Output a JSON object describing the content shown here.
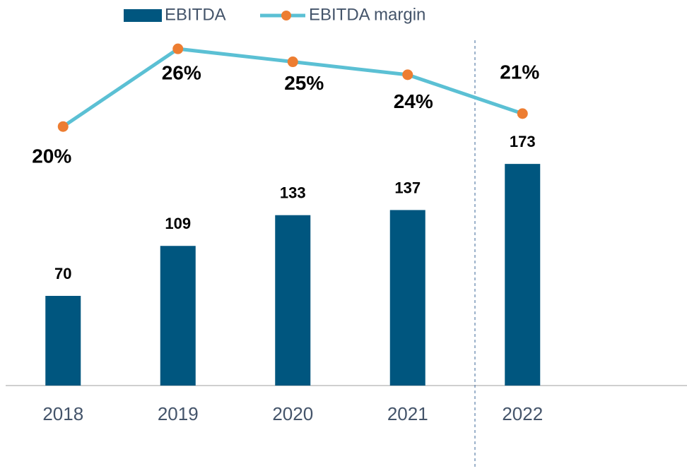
{
  "chart_data": {
    "type": "bar-line",
    "categories": [
      "2018",
      "2019",
      "2020",
      "2021",
      "2022"
    ],
    "series": [
      {
        "name": "EBITDA",
        "type": "bar",
        "color": "#00567f",
        "values": [
          70,
          109,
          133,
          137,
          173
        ]
      },
      {
        "name": "EBITDA margin",
        "type": "line",
        "axis": "y2",
        "color": "#5bc0d4",
        "marker_color": "#ed7d31",
        "values": [
          20,
          26,
          25,
          24,
          21
        ],
        "value_labels": [
          "20%",
          "26%",
          "25%",
          "24%",
          "21%"
        ]
      }
    ],
    "ylim": [
      0,
      280
    ],
    "y2lim": [
      0,
      27.7
    ],
    "legend": "top"
  }
}
